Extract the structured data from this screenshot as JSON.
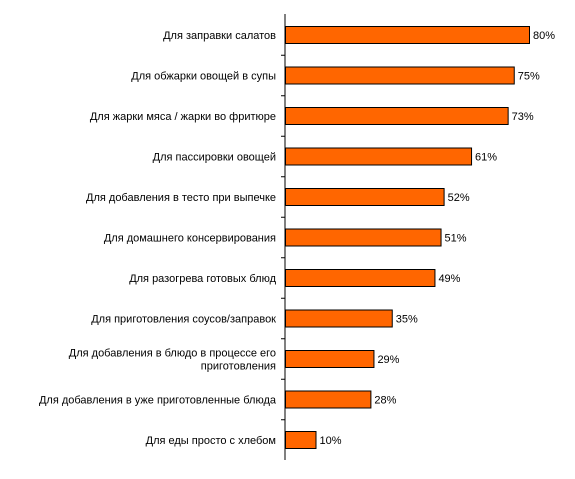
{
  "chart_data": {
    "type": "bar",
    "orientation": "horizontal",
    "categories": [
      [
        "Для заправки салатов"
      ],
      [
        "Для обжарки овощей в супы"
      ],
      [
        "Для жарки мяса / жарки во фритюре"
      ],
      [
        "Для пассировки овощей"
      ],
      [
        "Для добавления в тесто при выпечке"
      ],
      [
        "Для домашнего консервирования"
      ],
      [
        "Для разогрева готовых блюд"
      ],
      [
        "Для приготовления соусов/заправок"
      ],
      [
        "Для добавления в блюдо в процессе его",
        "приготовления"
      ],
      [
        "Для добавления в уже приготовленные блюда"
      ],
      [
        "Для еды просто с хлебом"
      ]
    ],
    "values": [
      80,
      75,
      73,
      61,
      52,
      51,
      49,
      35,
      29,
      28,
      10
    ],
    "value_labels": [
      "80%",
      "75%",
      "73%",
      "61%",
      "52%",
      "51%",
      "49%",
      "35%",
      "29%",
      "28%",
      "10%"
    ],
    "xlim": [
      0,
      80
    ],
    "grid": false,
    "legend": "none",
    "title": "",
    "xlabel": "",
    "ylabel": "",
    "colors": {
      "bar_fill": "#FF6600",
      "bar_stroke": "#000000",
      "axis": "#000000"
    }
  }
}
